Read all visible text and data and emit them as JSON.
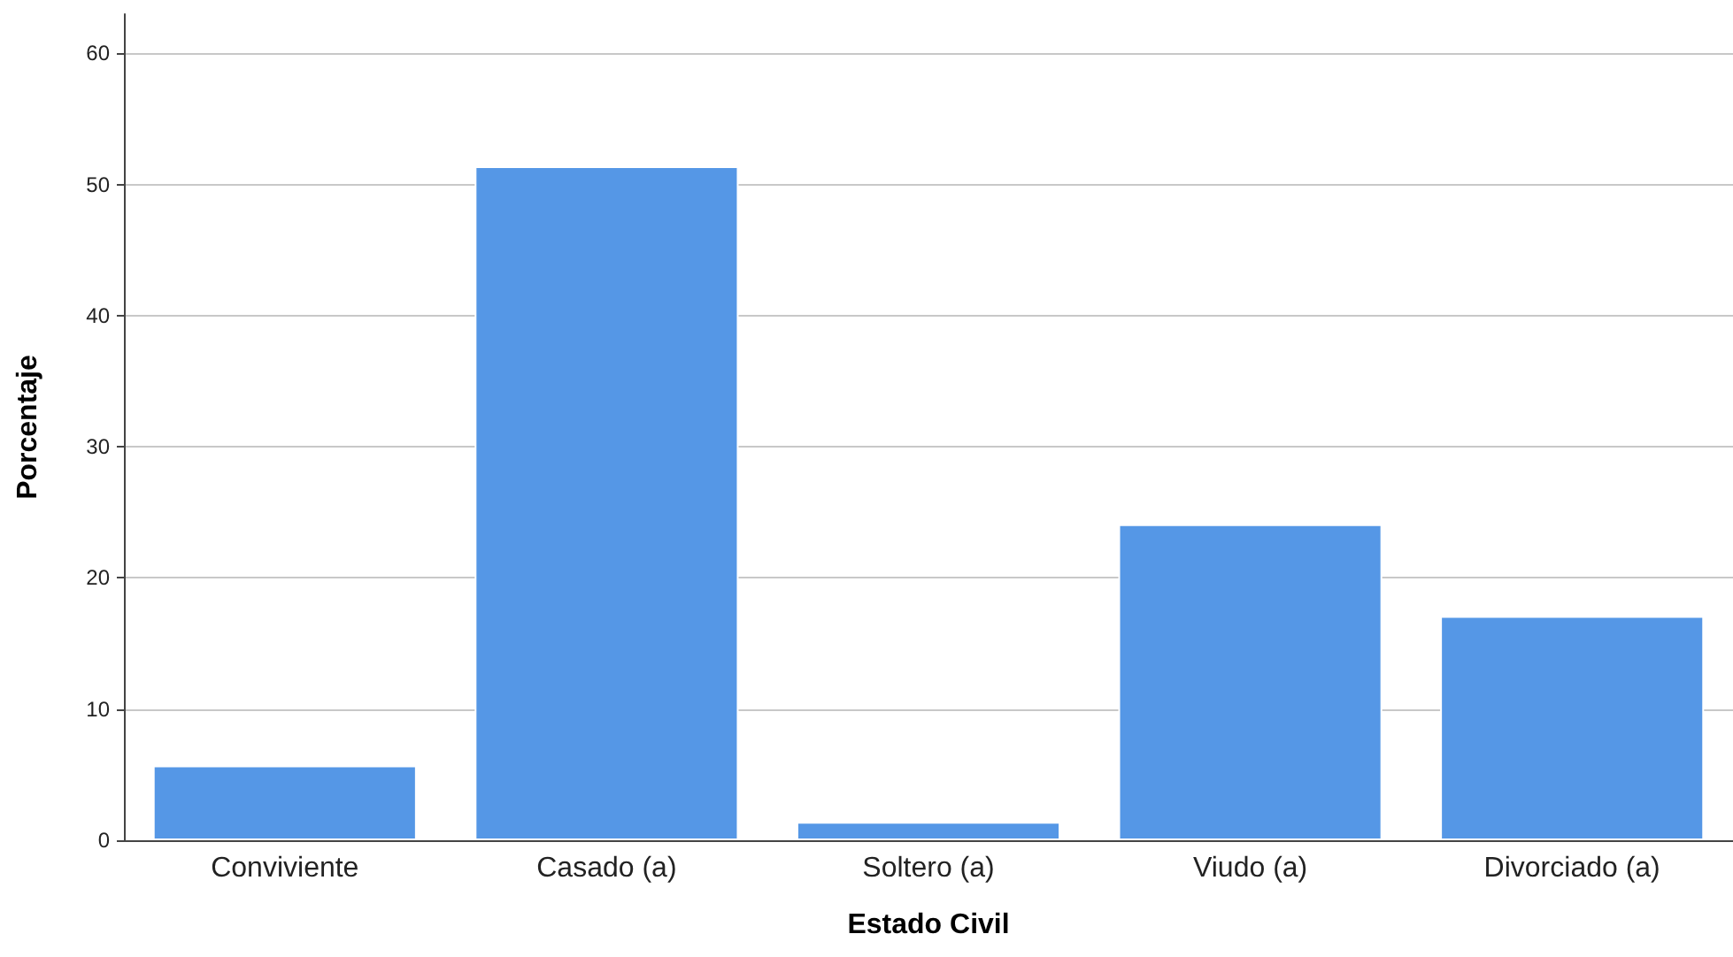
{
  "chart_data": {
    "type": "bar",
    "xlabel": "Estado Civil",
    "ylabel": "Porcentaje",
    "categories": [
      "Conviviente",
      "Casado (a)",
      "Soltero (a)",
      "Viudo (a)",
      "Divorciado (a)"
    ],
    "values": [
      5.7,
      51.4,
      1.4,
      24.1,
      17.1
    ],
    "color": "#5597e6",
    "ylim": [
      0,
      63
    ],
    "yticks": [
      0,
      10,
      20,
      30,
      40,
      50,
      60
    ],
    "grid": "y"
  }
}
